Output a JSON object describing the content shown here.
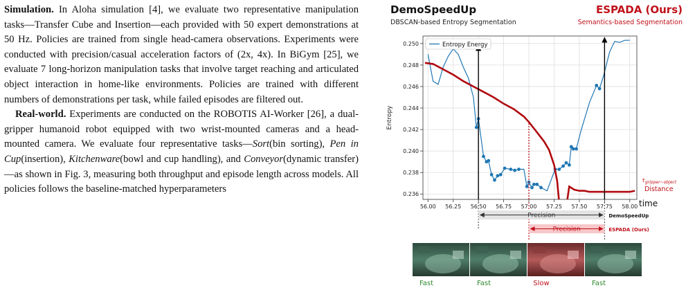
{
  "paragraphs": [
    {
      "head": "Simulation.",
      "parts": [
        {
          "t": " In Aloha simulation [4], we evaluate two representative manipulation tasks—Transfer Cube and Insertion—each provided with 50 expert demonstrations at 50 Hz. Policies are trained from single head-camera observations. Experiments were conducted with precision/casual acceleration factors of (2x, 4x). In BiGym [25], we evaluate 7 long-horizon manipulation tasks that involve target reaching and articulated object interaction in home-like environments. Policies are trained with different numbers of demonstrations per task, while failed episodes are filtered out."
        }
      ]
    },
    {
      "head": "Real-world.",
      "parts": [
        {
          "t": " Experiments are conducted on the ROBOTIS AI-Worker [26], a dual-gripper humanoid robot equipped with two wrist-mounted cameras and a head-mounted camera. We evaluate four representative tasks—"
        },
        {
          "t": "Sort",
          "i": true
        },
        {
          "t": "(bin sorting), "
        },
        {
          "t": "Pen in Cup",
          "i": true
        },
        {
          "t": "(insertion), "
        },
        {
          "t": "Kitchenware",
          "i": true
        },
        {
          "t": "(bowl and cup handling), and "
        },
        {
          "t": "Conveyor",
          "i": true
        },
        {
          "t": "(dynamic transfer)—as shown in Fig. 3, measuring both throughput and episode length across models. All policies follows the baseline-matched hyperparameters"
        }
      ]
    }
  ],
  "figure": {
    "left_title": "DemoSpeedUp",
    "left_subtitle": "DBSCAN-based Entropy Segmentation",
    "right_title": "ESPADA (Ours)",
    "right_subtitle": "Semantics-based Segmentation",
    "ylabel": "Entropy",
    "xlabel": "time",
    "legend": "Entropy Energy",
    "distance_label": "Distance",
    "distance_symbol": "τ",
    "distance_subscript": "gripper~object",
    "precision_label": "Precision",
    "demospeedup_tag": "DemoSpeedUp",
    "espada_tag": "ESPADA (Ours)",
    "speed_labels": [
      "Fast",
      "Fast",
      "Slow",
      "Fast"
    ],
    "colors": {
      "entropy": "#1f77b4",
      "distance": "#b0090f",
      "espada": "#c0101a",
      "fast": "#2f8a2f",
      "slow": "#c0101a"
    }
  },
  "chart_data": {
    "type": "line",
    "xlabel": "time",
    "ylabel": "Entropy",
    "xlim": [
      55.95,
      58.07
    ],
    "ylim": [
      0.2355,
      0.2507
    ],
    "xticks": [
      56.0,
      56.25,
      56.5,
      56.75,
      57.0,
      57.25,
      57.5,
      57.75,
      58.0
    ],
    "yticks": [
      0.236,
      0.238,
      0.24,
      0.242,
      0.244,
      0.246,
      0.248,
      0.25
    ],
    "grid": true,
    "legend_position": "top-left",
    "series": [
      {
        "name": "Entropy Energy",
        "x": [
          56.0,
          56.05,
          56.1,
          56.15,
          56.2,
          56.25,
          56.3,
          56.35,
          56.4,
          56.45,
          56.48,
          56.5,
          56.55,
          56.58,
          56.6,
          56.63,
          56.66,
          56.69,
          56.72,
          56.76,
          56.82,
          56.86,
          56.9,
          56.95,
          56.98,
          57.0,
          57.03,
          57.05,
          57.08,
          57.12,
          57.18,
          57.22,
          57.26,
          57.3,
          57.34,
          57.37,
          57.4,
          57.42,
          57.44,
          57.47,
          57.52,
          57.6,
          57.67,
          57.7,
          57.74,
          57.8,
          57.85,
          57.9,
          57.95,
          58.0
        ],
        "y": [
          0.249,
          0.2465,
          0.2462,
          0.2478,
          0.2488,
          0.2495,
          0.249,
          0.2478,
          0.2468,
          0.245,
          0.2422,
          0.243,
          0.2395,
          0.239,
          0.2391,
          0.2378,
          0.2373,
          0.2377,
          0.2378,
          0.2384,
          0.2383,
          0.2382,
          0.2383,
          0.2383,
          0.2367,
          0.2371,
          0.2366,
          0.2369,
          0.2369,
          0.2366,
          0.2363,
          0.2373,
          0.2383,
          0.2383,
          0.2386,
          0.2389,
          0.2387,
          0.2404,
          0.2402,
          0.2402,
          0.242,
          0.2445,
          0.2461,
          0.2458,
          0.247,
          0.2492,
          0.2502,
          0.2501,
          0.2503,
          0.2503
        ]
      },
      {
        "name": "Distance",
        "x": [
          55.97,
          56.05,
          56.15,
          56.25,
          56.35,
          56.45,
          56.55,
          56.65,
          56.75,
          56.85,
          56.95,
          57.0,
          57.05,
          57.1,
          57.15,
          57.2,
          57.25,
          57.28,
          57.3,
          57.33,
          57.36,
          57.4,
          57.45,
          57.5,
          57.55,
          57.6,
          57.7,
          57.8,
          57.9,
          58.0,
          58.05
        ],
        "y": [
          0.2482,
          0.2481,
          0.2476,
          0.2471,
          0.2465,
          0.246,
          0.2455,
          0.245,
          0.2444,
          0.2439,
          0.2432,
          0.2427,
          0.2421,
          0.2415,
          0.2409,
          0.2401,
          0.2387,
          0.2372,
          0.2352,
          0.2345,
          0.2341,
          0.2367,
          0.2364,
          0.2363,
          0.2363,
          0.2362,
          0.2362,
          0.2362,
          0.2362,
          0.2362,
          0.2363
        ]
      }
    ]
  }
}
